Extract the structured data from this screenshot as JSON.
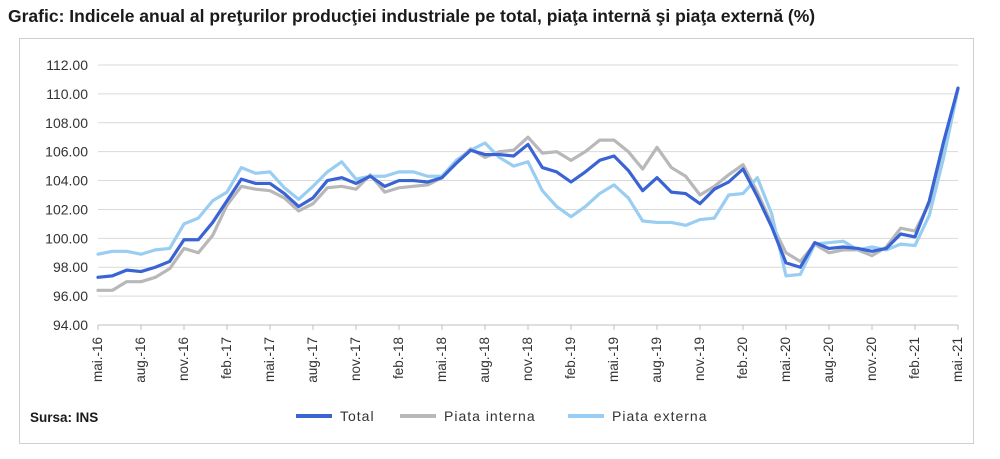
{
  "title": "Grafic: Indicele anual al preţurilor producţiei industriale pe total, piaţa internă şi piaţa externă (%)",
  "source": "Sursa: INS",
  "chart_data": {
    "type": "line",
    "y_ticks": [
      "94.00",
      "96.00",
      "98.00",
      "100.00",
      "102.00",
      "104.00",
      "106.00",
      "108.00",
      "110.00",
      "112.00"
    ],
    "ylim": [
      94,
      112
    ],
    "x_ticks": [
      "mai.-16",
      "aug.-16",
      "nov.-16",
      "feb.-17",
      "mai.-17",
      "aug.-17",
      "nov.-17",
      "feb.-18",
      "mai.-18",
      "aug.-18",
      "nov.-18",
      "feb.-19",
      "mai.-19",
      "aug.-19",
      "nov.-19",
      "feb.-20",
      "mai.-20",
      "aug.-20",
      "nov.-20",
      "feb.-21",
      "mai.-21"
    ],
    "x_tick_every": 3,
    "legend_position": "bottom",
    "grid": true,
    "series": [
      {
        "name": "Total",
        "color": "#3a63d4",
        "width": 3.2,
        "values": [
          97.3,
          97.4,
          97.8,
          97.7,
          98.0,
          98.4,
          99.9,
          99.9,
          101.1,
          102.6,
          104.1,
          103.8,
          103.8,
          103.1,
          102.2,
          102.8,
          104.0,
          104.2,
          103.8,
          104.3,
          103.6,
          104.0,
          104.0,
          103.9,
          104.2,
          105.2,
          106.1,
          105.8,
          105.8,
          105.7,
          106.5,
          104.9,
          104.6,
          103.9,
          104.6,
          105.4,
          105.7,
          104.7,
          103.3,
          104.2,
          103.2,
          103.1,
          102.4,
          103.4,
          103.9,
          104.8,
          102.9,
          100.8,
          98.3,
          98.0,
          99.7,
          99.3,
          99.4,
          99.3,
          99.1,
          99.3,
          100.3,
          100.1,
          102.6,
          106.7,
          110.4
        ]
      },
      {
        "name": "Piata interna",
        "color": "#b8b8b8",
        "width": 3.2,
        "values": [
          96.4,
          96.4,
          97.0,
          97.0,
          97.3,
          97.9,
          99.3,
          99.0,
          100.2,
          102.3,
          103.6,
          103.4,
          103.3,
          102.8,
          101.9,
          102.4,
          103.5,
          103.6,
          103.4,
          104.4,
          103.2,
          103.5,
          103.6,
          103.7,
          104.2,
          105.3,
          106.2,
          105.6,
          106.0,
          106.1,
          107.0,
          105.9,
          106.0,
          105.4,
          106.0,
          106.8,
          106.8,
          106.0,
          104.8,
          106.3,
          104.9,
          104.3,
          103.0,
          103.6,
          104.4,
          105.1,
          103.2,
          101.0,
          99.0,
          98.4,
          99.6,
          99.0,
          99.2,
          99.2,
          98.8,
          99.4,
          100.7,
          100.5,
          102.4,
          106.2,
          110.4
        ]
      },
      {
        "name": "Piata externa",
        "color": "#99cdf2",
        "width": 3.2,
        "values": [
          98.9,
          99.1,
          99.1,
          98.9,
          99.2,
          99.3,
          101.0,
          101.4,
          102.6,
          103.2,
          104.9,
          104.5,
          104.6,
          103.5,
          102.7,
          103.6,
          104.6,
          105.3,
          104.1,
          104.3,
          104.3,
          104.6,
          104.6,
          104.3,
          104.3,
          105.4,
          106.1,
          106.6,
          105.6,
          105.0,
          105.3,
          103.3,
          102.2,
          101.5,
          102.2,
          103.1,
          103.7,
          102.8,
          101.2,
          101.1,
          101.1,
          100.9,
          101.3,
          101.4,
          103.0,
          103.1,
          104.2,
          101.7,
          97.4,
          97.5,
          99.6,
          99.7,
          99.8,
          99.2,
          99.4,
          99.2,
          99.6,
          99.5,
          101.6,
          105.6,
          110.3
        ]
      }
    ]
  }
}
